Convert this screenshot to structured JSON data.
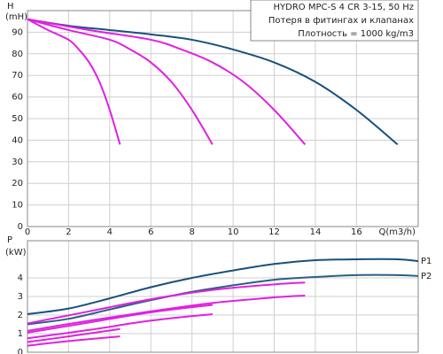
{
  "chart_data": [
    {
      "type": "line",
      "y_label": "H",
      "y_unit": "(mH)",
      "x_label": "Q(m3/h)",
      "annotations": [
        "HYDRO MPC-S 4 CR 3-15, 50 Hz",
        "Потеря в фитингах и клапанах",
        "Плотность = 1000 kg/m3"
      ],
      "xlim": [
        0,
        19
      ],
      "xticks": [
        0,
        2,
        4,
        6,
        8,
        10,
        12,
        14,
        16
      ],
      "ylim": [
        0,
        100
      ],
      "yticks": [
        0,
        10,
        20,
        30,
        40,
        50,
        60,
        70,
        80,
        90
      ],
      "grid": true,
      "series": [
        {
          "color": "#17507e",
          "x": [
            0,
            2,
            4,
            6,
            8,
            10,
            12,
            14,
            16,
            18
          ],
          "values": [
            96,
            93,
            91,
            89,
            86.5,
            82,
            76,
            67,
            54,
            38
          ]
        },
        {
          "color": "#e020e0",
          "x": [
            0,
            3,
            6,
            7.5,
            9,
            10.5,
            12,
            13.5
          ],
          "values": [
            96,
            91,
            86.5,
            82,
            76,
            67,
            54,
            38
          ]
        },
        {
          "color": "#e020e0",
          "x": [
            0,
            2,
            4,
            5,
            6,
            7,
            8,
            9
          ],
          "values": [
            96,
            91,
            86.5,
            82,
            76,
            67,
            54,
            38
          ]
        },
        {
          "color": "#e020e0",
          "x": [
            0,
            1,
            2,
            2.5,
            3,
            3.5,
            4,
            4.5
          ],
          "values": [
            96,
            91,
            86.5,
            82,
            76,
            67,
            54,
            38
          ]
        }
      ]
    },
    {
      "type": "line",
      "y_label": "P",
      "y_unit": "(kW)",
      "xlim": [
        0,
        19
      ],
      "ylim": [
        0,
        6
      ],
      "yticks": [
        0,
        1,
        2,
        3,
        4
      ],
      "grid": true,
      "series": [
        {
          "name": "P1",
          "color": "#17507e",
          "x": [
            0,
            2,
            4,
            6,
            8,
            10,
            12,
            14,
            16,
            18,
            19
          ],
          "values": [
            2.05,
            2.35,
            2.9,
            3.5,
            4.0,
            4.4,
            4.75,
            4.95,
            5.0,
            5.0,
            4.9
          ]
        },
        {
          "name": "P2",
          "color": "#2a5f82",
          "x": [
            0,
            2,
            4,
            6,
            8,
            10,
            12,
            14,
            16,
            18,
            19
          ],
          "values": [
            1.5,
            1.8,
            2.3,
            2.8,
            3.25,
            3.6,
            3.9,
            4.05,
            4.15,
            4.15,
            4.1
          ]
        },
        {
          "color": "#e020e0",
          "x": [
            0,
            3,
            6,
            9,
            12,
            13.5
          ],
          "values": [
            1.55,
            2.2,
            2.85,
            3.35,
            3.65,
            3.75
          ]
        },
        {
          "color": "#e020e0",
          "x": [
            0,
            3,
            6,
            9,
            12,
            13.5
          ],
          "values": [
            1.15,
            1.7,
            2.2,
            2.65,
            2.95,
            3.05
          ]
        },
        {
          "color": "#e020e0",
          "x": [
            0,
            3,
            6,
            9
          ],
          "values": [
            1.05,
            1.6,
            2.15,
            2.55
          ]
        },
        {
          "color": "#e020e0",
          "x": [
            0,
            3,
            6,
            9
          ],
          "values": [
            0.75,
            1.2,
            1.7,
            2.05
          ]
        },
        {
          "color": "#e020e0",
          "x": [
            0,
            2,
            4.5
          ],
          "values": [
            0.55,
            0.85,
            1.25
          ]
        },
        {
          "color": "#e020e0",
          "x": [
            0,
            2,
            4.5
          ],
          "values": [
            0.35,
            0.6,
            0.85
          ]
        }
      ]
    }
  ]
}
